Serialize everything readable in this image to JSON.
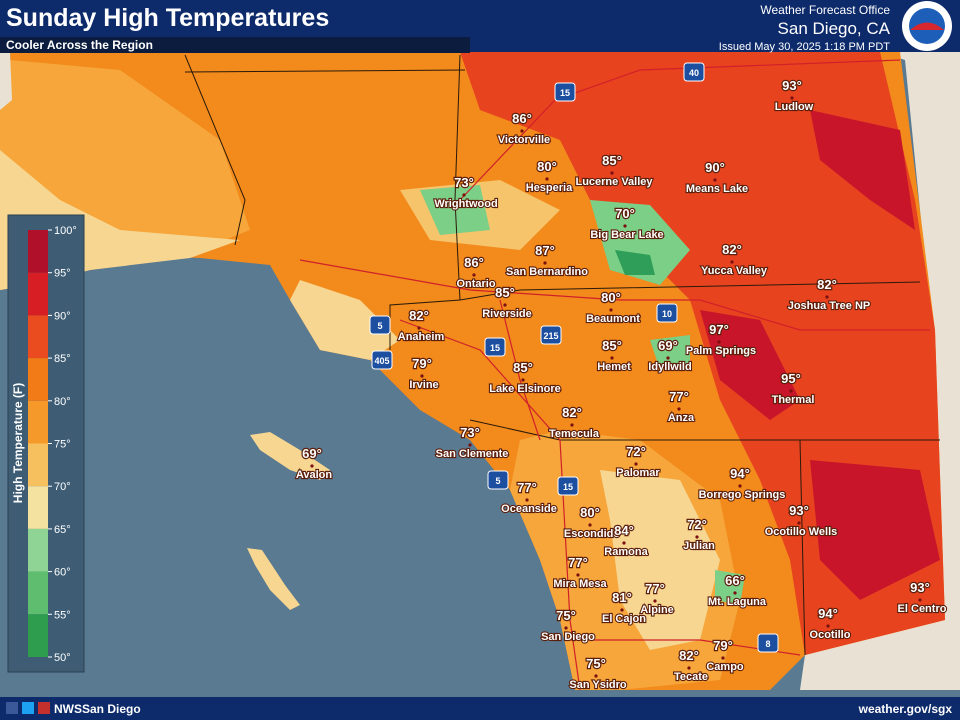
{
  "header": {
    "title": "Sunday High Temperatures",
    "subtitle": "Cooler Across the Region",
    "office_label": "Weather Forecast Office",
    "office": "San Diego, CA",
    "issued": "Issued May 30, 2025 1:18 PM PDT"
  },
  "legend": {
    "title": "High Temperature (F)",
    "ticks": [
      "100°",
      "95°",
      "90°",
      "85°",
      "80°",
      "75°",
      "70°",
      "65°",
      "60°",
      "55°",
      "50°"
    ]
  },
  "cities": [
    {
      "name": "Ludlow",
      "temp": "93°"
    },
    {
      "name": "Victorville",
      "temp": "86°"
    },
    {
      "name": "Hesperia",
      "temp": "80°"
    },
    {
      "name": "Lucerne Valley",
      "temp": "85°"
    },
    {
      "name": "Means Lake",
      "temp": "90°"
    },
    {
      "name": "Wrightwood",
      "temp": "73°"
    },
    {
      "name": "Big Bear Lake",
      "temp": "70°"
    },
    {
      "name": "San Bernardino",
      "temp": "87°"
    },
    {
      "name": "Yucca Valley",
      "temp": "82°"
    },
    {
      "name": "Ontario",
      "temp": "86°"
    },
    {
      "name": "Riverside",
      "temp": "85°"
    },
    {
      "name": "Joshua Tree NP",
      "temp": "82°"
    },
    {
      "name": "Beaumont",
      "temp": "80°"
    },
    {
      "name": "Anaheim",
      "temp": "82°"
    },
    {
      "name": "Palm Springs",
      "temp": "97°"
    },
    {
      "name": "Irvine",
      "temp": "79°"
    },
    {
      "name": "Hemet",
      "temp": "85°"
    },
    {
      "name": "Idyllwild",
      "temp": "69°"
    },
    {
      "name": "Lake Elsinore",
      "temp": "85°"
    },
    {
      "name": "Thermal",
      "temp": "95°"
    },
    {
      "name": "Anza",
      "temp": "77°"
    },
    {
      "name": "Temecula",
      "temp": "82°"
    },
    {
      "name": "San Clemente",
      "temp": "73°"
    },
    {
      "name": "Palomar",
      "temp": "72°"
    },
    {
      "name": "Avalon",
      "temp": "69°"
    },
    {
      "name": "Borrego Springs",
      "temp": "94°"
    },
    {
      "name": "Oceanside",
      "temp": "77°"
    },
    {
      "name": "Ocotillo Wells",
      "temp": "93°"
    },
    {
      "name": "Escondido",
      "temp": "80°"
    },
    {
      "name": "Ramona",
      "temp": "84°"
    },
    {
      "name": "Julian",
      "temp": "72°"
    },
    {
      "name": "Mira Mesa",
      "temp": "77°"
    },
    {
      "name": "Mt. Laguna",
      "temp": "66°"
    },
    {
      "name": "Alpine",
      "temp": "77°"
    },
    {
      "name": "El Cajon",
      "temp": "81°"
    },
    {
      "name": "El Centro",
      "temp": "93°"
    },
    {
      "name": "Ocotillo",
      "temp": "94°"
    },
    {
      "name": "San Diego",
      "temp": "75°"
    },
    {
      "name": "Campo",
      "temp": "79°"
    },
    {
      "name": "Tecate",
      "temp": "82°"
    },
    {
      "name": "San Ysidro",
      "temp": "75°"
    }
  ],
  "highways": [
    "40",
    "15",
    "5",
    "405",
    "15",
    "215",
    "10",
    "5",
    "15",
    "8"
  ],
  "footer": {
    "social": "NWSSan Diego",
    "url": "weather.gov/sgx"
  }
}
